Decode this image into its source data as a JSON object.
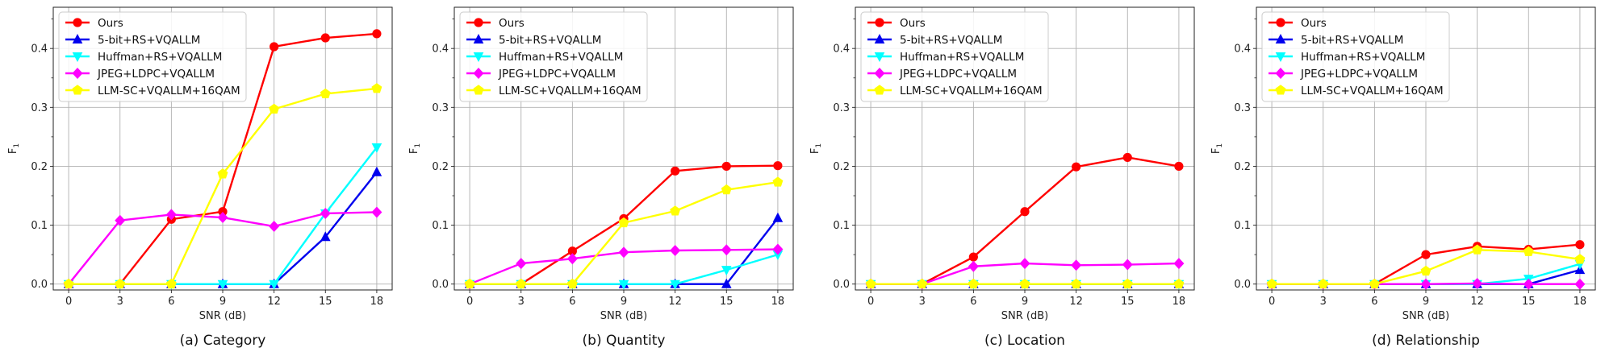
{
  "figure_colors": {
    "Ours": "#ff0000",
    "5-bit+RS+VQALLM": "#0000ee",
    "Huffman+RS+VQALLM": "#00ffff",
    "JPEG+LDPC+VQALLM": "#ff00ff",
    "LLM-SC+VQALLM+16QAM": "#ffff00"
  },
  "chart_data": [
    {
      "type": "line",
      "caption": "(a) Category",
      "xlabel": "SNR (dB)",
      "ylabel": "F",
      "ylabel_sub": "1",
      "x": [
        0,
        3,
        6,
        9,
        12,
        15,
        18
      ],
      "xticks": [
        "0",
        "3",
        "6",
        "9",
        "12",
        "15",
        "18"
      ],
      "yticks": [
        "0.0",
        "0.1",
        "0.2",
        "0.3",
        "0.4"
      ],
      "ytick_values": [
        0,
        0.1,
        0.2,
        0.3,
        0.4
      ],
      "xlim": [
        -0.9,
        18.9
      ],
      "ylim": [
        -0.01,
        0.47
      ],
      "legend_loc": "top-left",
      "series": [
        {
          "name": "Ours",
          "marker": "circle",
          "values": [
            0,
            0,
            0.11,
            0.123,
            0.403,
            0.418,
            0.425
          ]
        },
        {
          "name": "5-bit+RS+VQALLM",
          "marker": "triangle-up",
          "values": [
            0,
            0,
            0,
            0,
            0,
            0.08,
            0.19
          ]
        },
        {
          "name": "Huffman+RS+VQALLM",
          "marker": "triangle-down",
          "values": [
            0,
            0,
            0,
            0,
            0,
            0.12,
            0.232
          ]
        },
        {
          "name": "JPEG+LDPC+VQALLM",
          "marker": "diamond",
          "values": [
            0,
            0.108,
            0.118,
            0.113,
            0.098,
            0.12,
            0.122
          ]
        },
        {
          "name": "LLM-SC+VQALLM+16QAM",
          "marker": "pentagon",
          "values": [
            0,
            0,
            0,
            0.187,
            0.297,
            0.323,
            0.332
          ]
        }
      ]
    },
    {
      "type": "line",
      "caption": "(b) Quantity",
      "xlabel": "SNR (dB)",
      "ylabel": "F",
      "ylabel_sub": "1",
      "x": [
        0,
        3,
        6,
        9,
        12,
        15,
        18
      ],
      "xticks": [
        "0",
        "3",
        "6",
        "9",
        "12",
        "15",
        "18"
      ],
      "yticks": [
        "0.0",
        "0.1",
        "0.2",
        "0.3",
        "0.4"
      ],
      "ytick_values": [
        0,
        0.1,
        0.2,
        0.3,
        0.4
      ],
      "xlim": [
        -0.9,
        18.9
      ],
      "ylim": [
        -0.01,
        0.47
      ],
      "legend_loc": "top-left",
      "series": [
        {
          "name": "Ours",
          "marker": "circle",
          "values": [
            0,
            0,
            0.056,
            0.111,
            0.192,
            0.2,
            0.201
          ]
        },
        {
          "name": "5-bit+RS+VQALLM",
          "marker": "triangle-up",
          "values": [
            0,
            0,
            0,
            0,
            0,
            0,
            0.112
          ]
        },
        {
          "name": "Huffman+RS+VQALLM",
          "marker": "triangle-down",
          "values": [
            0,
            0,
            0,
            0,
            0,
            0.024,
            0.05
          ]
        },
        {
          "name": "JPEG+LDPC+VQALLM",
          "marker": "diamond",
          "values": [
            0,
            0.035,
            0.043,
            0.054,
            0.057,
            0.058,
            0.059
          ]
        },
        {
          "name": "LLM-SC+VQALLM+16QAM",
          "marker": "pentagon",
          "values": [
            0,
            0,
            0,
            0.104,
            0.124,
            0.16,
            0.173
          ]
        }
      ]
    },
    {
      "type": "line",
      "caption": "(c) Location",
      "xlabel": "SNR (dB)",
      "ylabel": "F",
      "ylabel_sub": "1",
      "x": [
        0,
        3,
        6,
        9,
        12,
        15,
        18
      ],
      "xticks": [
        "0",
        "3",
        "6",
        "9",
        "12",
        "15",
        "18"
      ],
      "yticks": [
        "0.0",
        "0.1",
        "0.2",
        "0.3",
        "0.4"
      ],
      "ytick_values": [
        0,
        0.1,
        0.2,
        0.3,
        0.4
      ],
      "xlim": [
        -0.9,
        18.9
      ],
      "ylim": [
        -0.01,
        0.47
      ],
      "legend_loc": "top-left",
      "series": [
        {
          "name": "Ours",
          "marker": "circle",
          "values": [
            0,
            0,
            0.046,
            0.123,
            0.199,
            0.215,
            0.2
          ]
        },
        {
          "name": "5-bit+RS+VQALLM",
          "marker": "triangle-up",
          "values": [
            0,
            0,
            0,
            0,
            0,
            0,
            0
          ]
        },
        {
          "name": "Huffman+RS+VQALLM",
          "marker": "triangle-down",
          "values": [
            0,
            0,
            0,
            0,
            0,
            0,
            0
          ]
        },
        {
          "name": "JPEG+LDPC+VQALLM",
          "marker": "diamond",
          "values": [
            0,
            0,
            0.03,
            0.035,
            0.032,
            0.033,
            0.035
          ]
        },
        {
          "name": "LLM-SC+VQALLM+16QAM",
          "marker": "pentagon",
          "values": [
            0,
            0,
            0,
            0,
            0,
            0,
            0
          ]
        }
      ]
    },
    {
      "type": "line",
      "caption": "(d) Relationship",
      "xlabel": "SNR (dB)",
      "ylabel": "F",
      "ylabel_sub": "1",
      "x": [
        0,
        3,
        6,
        9,
        12,
        15,
        18
      ],
      "xticks": [
        "0",
        "3",
        "6",
        "9",
        "12",
        "15",
        "18"
      ],
      "yticks": [
        "0.0",
        "0.1",
        "0.2",
        "0.3",
        "0.4"
      ],
      "ytick_values": [
        0,
        0.1,
        0.2,
        0.3,
        0.4
      ],
      "xlim": [
        -0.9,
        18.9
      ],
      "ylim": [
        -0.01,
        0.47
      ],
      "legend_loc": "top-left",
      "series": [
        {
          "name": "Ours",
          "marker": "circle",
          "values": [
            0,
            0,
            0,
            0.05,
            0.064,
            0.059,
            0.067
          ]
        },
        {
          "name": "5-bit+RS+VQALLM",
          "marker": "triangle-up",
          "values": [
            0,
            0,
            0,
            0,
            0,
            0,
            0.024
          ]
        },
        {
          "name": "Huffman+RS+VQALLM",
          "marker": "triangle-down",
          "values": [
            0,
            0,
            0,
            0,
            0,
            0.009,
            0.034
          ]
        },
        {
          "name": "JPEG+LDPC+VQALLM",
          "marker": "diamond",
          "values": [
            0,
            0,
            0,
            0,
            0.001,
            0,
            0
          ]
        },
        {
          "name": "LLM-SC+VQALLM+16QAM",
          "marker": "pentagon",
          "values": [
            0,
            0,
            0,
            0.022,
            0.058,
            0.055,
            0.042
          ]
        }
      ]
    }
  ]
}
